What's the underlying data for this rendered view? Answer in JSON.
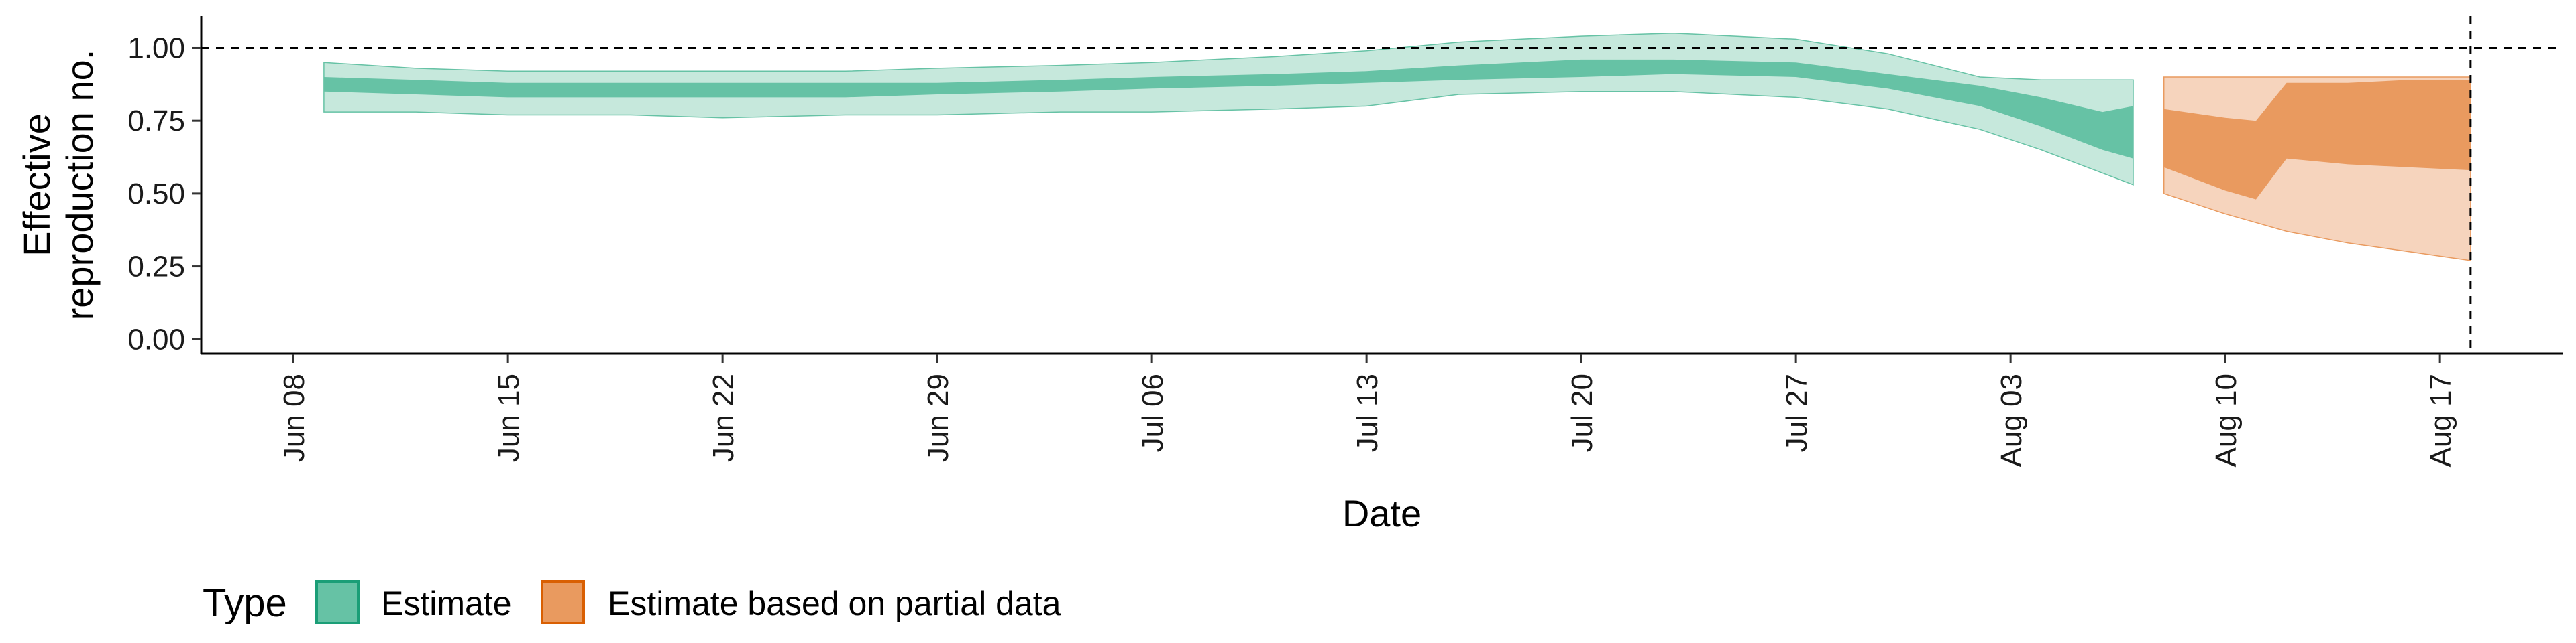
{
  "chart_data": {
    "type": "area",
    "xlabel": "Date",
    "ylabel_lines": [
      "Effective",
      "reproduction no."
    ],
    "x_ticks": [
      "Jun 08",
      "Jun 15",
      "Jun 22",
      "Jun 29",
      "Jul 06",
      "Jul 13",
      "Jul 20",
      "Jul 27",
      "Aug 03",
      "Aug 10",
      "Aug 17"
    ],
    "y_ticks": [
      "0.00",
      "0.25",
      "0.50",
      "0.75",
      "1.00"
    ],
    "ylim": [
      -0.05,
      1.1
    ],
    "xlim": [
      "2020-06-05",
      "2020-08-21"
    ],
    "reference_line_y": 1.0,
    "reference_line_x": "2020-08-18",
    "grid": false,
    "legend": {
      "title": "Type",
      "position": "bottom-left",
      "items": [
        {
          "label": "Estimate",
          "color": "#66c2a5",
          "border": "#1b9e77"
        },
        {
          "label": "Estimate based on partial data",
          "color": "#e99a5f",
          "border": "#d95f02"
        }
      ]
    },
    "series": [
      {
        "name": "Estimate",
        "color_inner": "#66c2a5",
        "color_outer": "#c6e8dc",
        "x": [
          "2020-06-09",
          "2020-06-12",
          "2020-06-15",
          "2020-06-19",
          "2020-06-22",
          "2020-06-26",
          "2020-06-29",
          "2020-07-03",
          "2020-07-06",
          "2020-07-10",
          "2020-07-13",
          "2020-07-16",
          "2020-07-20",
          "2020-07-23",
          "2020-07-27",
          "2020-07-30",
          "2020-08-02",
          "2020-08-04",
          "2020-08-06",
          "2020-08-07"
        ],
        "lower90": [
          0.78,
          0.78,
          0.77,
          0.77,
          0.76,
          0.77,
          0.77,
          0.78,
          0.78,
          0.79,
          0.8,
          0.84,
          0.85,
          0.85,
          0.83,
          0.79,
          0.72,
          0.65,
          0.57,
          0.53
        ],
        "lower50": [
          0.85,
          0.84,
          0.83,
          0.83,
          0.83,
          0.83,
          0.84,
          0.85,
          0.86,
          0.87,
          0.88,
          0.89,
          0.9,
          0.91,
          0.9,
          0.86,
          0.8,
          0.73,
          0.65,
          0.62
        ],
        "upper50": [
          0.9,
          0.89,
          0.88,
          0.88,
          0.88,
          0.88,
          0.88,
          0.89,
          0.9,
          0.91,
          0.92,
          0.94,
          0.96,
          0.96,
          0.95,
          0.91,
          0.87,
          0.83,
          0.78,
          0.8
        ],
        "upper90": [
          0.95,
          0.93,
          0.92,
          0.92,
          0.92,
          0.92,
          0.93,
          0.94,
          0.95,
          0.97,
          0.99,
          1.02,
          1.04,
          1.05,
          1.03,
          0.98,
          0.9,
          0.89,
          0.89,
          0.89
        ]
      },
      {
        "name": "Estimate based on partial data",
        "color_inner": "#e99a5f",
        "color_outer": "#f6d4bd",
        "x": [
          "2020-08-08",
          "2020-08-10",
          "2020-08-11",
          "2020-08-12",
          "2020-08-14",
          "2020-08-16",
          "2020-08-18"
        ],
        "lower90": [
          0.5,
          0.43,
          0.4,
          0.37,
          0.33,
          0.3,
          0.27
        ],
        "lower50": [
          0.59,
          0.51,
          0.48,
          0.62,
          0.6,
          0.59,
          0.58
        ],
        "upper50": [
          0.79,
          0.76,
          0.75,
          0.88,
          0.88,
          0.89,
          0.89
        ],
        "upper90": [
          0.9,
          0.9,
          0.9,
          0.9,
          0.9,
          0.9,
          0.9
        ]
      }
    ]
  }
}
